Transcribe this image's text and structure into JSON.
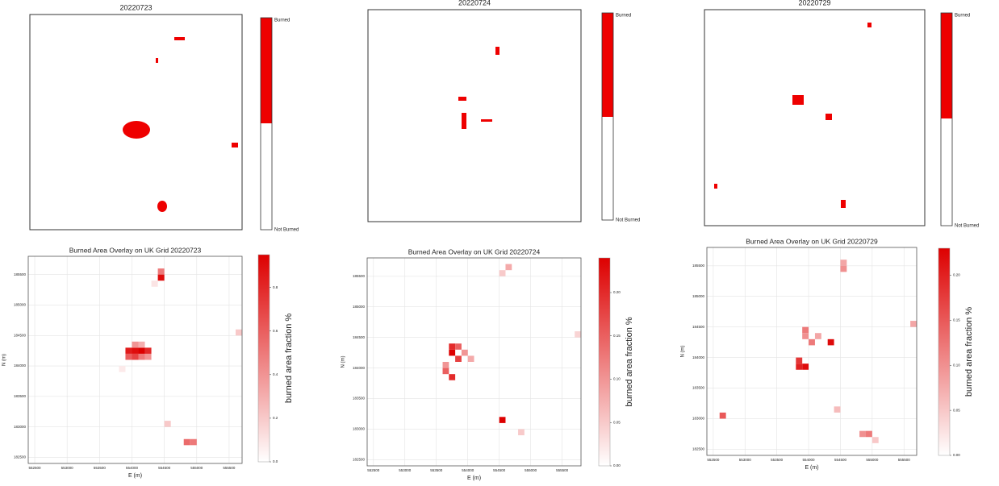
{
  "chart_data": [
    {
      "type": "map",
      "title": "20220723",
      "colorbar_labels": [
        "Burned",
        "Not Burned"
      ],
      "color": "#ee0000"
    },
    {
      "type": "map",
      "title": "20220724",
      "colorbar_labels": [
        "Burned",
        "Not Burned"
      ],
      "color": "#ee0000"
    },
    {
      "type": "map",
      "title": "20220729",
      "colorbar_labels": [
        "Burned",
        "Not Burned"
      ],
      "color": "#ee0000"
    },
    {
      "type": "heatmap",
      "title": "Burned Area Overlay on UK Grid 20220723",
      "xlabel": "E (m)",
      "ylabel": "N (m)",
      "colorbar_label": "burned area fraction %",
      "color": "#dd0000",
      "grid": true,
      "xlim": [
        552400,
        555700
      ],
      "ylim": [
        182400,
        185800
      ],
      "xticks": [
        552500,
        553000,
        553500,
        554000,
        554500,
        555000,
        555500
      ],
      "yticks": [
        182500,
        183000,
        183500,
        184000,
        184500,
        185000,
        185500
      ],
      "clim": [
        0,
        0.95
      ],
      "cticks": [
        {
          "value": 0,
          "label": "0.0"
        },
        0.2,
        0.4,
        0.6,
        0.8
      ],
      "cell_size": 100,
      "x": [
        553900,
        554000,
        554100,
        554200,
        553900,
        554000,
        554100,
        554200,
        554000,
        554100,
        554400,
        554400,
        554300,
        554800,
        554900,
        554500,
        555600,
        553800
      ],
      "y": [
        184200,
        184200,
        184200,
        184200,
        184100,
        184100,
        184100,
        184100,
        184300,
        184300,
        185500,
        185400,
        185300,
        182700,
        182700,
        183000,
        184500,
        183900
      ],
      "values": [
        0.85,
        0.9,
        0.95,
        0.8,
        0.6,
        0.7,
        0.5,
        0.4,
        0.4,
        0.3,
        0.5,
        0.9,
        0.1,
        0.55,
        0.5,
        0.2,
        0.2,
        0.08
      ]
    },
    {
      "type": "heatmap",
      "title": "Burned Area Overlay on UK Grid 20220724",
      "xlabel": "E (m)",
      "ylabel": "N (m)",
      "colorbar_label": "burned area fraction %",
      "color": "#dd0000",
      "grid": true,
      "xlim": [
        552400,
        555800
      ],
      "ylim": [
        182400,
        185800
      ],
      "xticks": [
        552500,
        553000,
        553500,
        554000,
        554500,
        555000,
        555500
      ],
      "yticks": [
        182500,
        183000,
        183500,
        184000,
        184500,
        185000,
        185500
      ],
      "clim": [
        0,
        0.24
      ],
      "cticks": [
        {
          "value": 0,
          "label": "0.00"
        },
        0.05,
        {
          "value": 0.1,
          "label": "0.10"
        },
        0.15,
        {
          "value": 0.2,
          "label": "0.20"
        }
      ],
      "cell_size": 100,
      "x": [
        553700,
        553700,
        553800,
        553800,
        553900,
        554000,
        553600,
        553700,
        553600,
        554500,
        554600,
        554500,
        554800,
        555700
      ],
      "y": [
        184300,
        184200,
        184300,
        184100,
        184200,
        184100,
        183900,
        183800,
        184000,
        183100,
        185600,
        185500,
        182900,
        184500
      ],
      "values": [
        0.2,
        0.24,
        0.15,
        0.18,
        0.1,
        0.08,
        0.15,
        0.2,
        0.1,
        0.24,
        0.08,
        0.05,
        0.05,
        0.04
      ]
    },
    {
      "type": "heatmap",
      "title": "Burned Area Overlay on UK Grid 20220729",
      "xlabel": "E (m)",
      "ylabel": "N (m)",
      "colorbar_label": "burned area fraction %",
      "color": "#dd0000",
      "grid": true,
      "xlim": [
        552400,
        555700
      ],
      "ylim": [
        182400,
        185800
      ],
      "xticks": [
        552500,
        553000,
        553500,
        554000,
        554500,
        555000,
        555500
      ],
      "yticks": [
        182500,
        183000,
        183500,
        184000,
        184500,
        185000,
        185500
      ],
      "clim": [
        0,
        0.23
      ],
      "cticks": [
        {
          "value": 0,
          "label": "0.00"
        },
        0.05,
        {
          "value": 0.1,
          "label": "0.10"
        },
        0.15,
        {
          "value": 0.2,
          "label": "0.20"
        }
      ],
      "cell_size": 100,
      "x": [
        553900,
        553900,
        554000,
        553800,
        553900,
        553800,
        554300,
        554100,
        554500,
        554500,
        552600,
        554800,
        554900,
        555000,
        554400,
        555600
      ],
      "y": [
        184400,
        184300,
        184200,
        183900,
        183800,
        183800,
        184200,
        184300,
        185500,
        185400,
        183000,
        182700,
        182700,
        182600,
        183100,
        184500
      ],
      "values": [
        0.12,
        0.1,
        0.12,
        0.18,
        0.22,
        0.2,
        0.22,
        0.08,
        0.08,
        0.1,
        0.15,
        0.1,
        0.12,
        0.05,
        0.06,
        0.08
      ]
    }
  ]
}
